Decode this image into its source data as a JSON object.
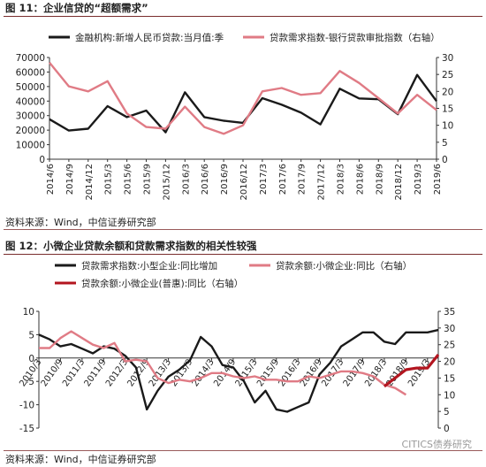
{
  "figure1": {
    "title": "图 11：企业信贷的“超额需求”",
    "source": "资料来源：Wind，中信证券研究部",
    "legend": [
      {
        "label": "金融机构:新增人民币贷款:当月值:季",
        "color": "#1a1a1a"
      },
      {
        "label": "贷款需求指数-银行贷款审批指数（右轴）",
        "color": "#e07b85"
      }
    ],
    "left_ticks": [
      "0",
      "10000",
      "20000",
      "30000",
      "40000",
      "50000",
      "60000",
      "70000"
    ],
    "right_ticks": [
      "0",
      "5",
      "10",
      "15",
      "20",
      "25",
      "30"
    ]
  },
  "figure2": {
    "title": "图 12：小微企业贷款余额和贷款需求指数的相关性较强",
    "source": "资料来源：Wind，中信证券研究部",
    "legend": [
      {
        "label": "贷款需求指数:小型企业:同比增加",
        "color": "#1a1a1a"
      },
      {
        "label": "贷款余额:小微企业:同比（右轴）",
        "color": "#e07b85"
      },
      {
        "label": "贷款余额:小微企业(普惠):同比（右轴）",
        "color": "#b3151f"
      }
    ],
    "left_ticks": [
      "-15",
      "-10",
      "-5",
      "0",
      "5",
      "10"
    ],
    "right_ticks": [
      "0",
      "5",
      "10",
      "15",
      "20",
      "25",
      "30",
      "35"
    ]
  },
  "watermark": "CITICS债券研究",
  "chart_data": [
    {
      "type": "line",
      "title": "图 11：企业信贷的“超额需求”",
      "x": [
        "2014/6",
        "2014/9",
        "2014/12",
        "2015/3",
        "2015/6",
        "2015/9",
        "2015/12",
        "2016/3",
        "2016/6",
        "2016/9",
        "2016/12",
        "2017/3",
        "2017/6",
        "2017/9",
        "2017/12",
        "2018/3",
        "2018/6",
        "2018/9",
        "2018/12",
        "2019/3",
        "2019/6"
      ],
      "y_left_range": [
        0,
        70000
      ],
      "y_right_range": [
        0,
        30
      ],
      "series": [
        {
          "name": "金融机构:新增人民币贷款:当月值:季",
          "axis": "left",
          "color": "#1a1a1a",
          "values": [
            27500,
            19700,
            21000,
            36500,
            29000,
            33500,
            18500,
            46000,
            29000,
            26500,
            25000,
            42000,
            37500,
            32000,
            24000,
            48500,
            41800,
            41300,
            31000,
            58000,
            40000
          ]
        },
        {
          "name": "贷款需求指数-银行贷款审批指数（右轴）",
          "axis": "right",
          "color": "#e07b85",
          "values": [
            28.5,
            21.5,
            20.0,
            23.0,
            13.5,
            9.5,
            9.0,
            15.5,
            9.5,
            7.5,
            10.0,
            20.0,
            21.0,
            19.0,
            19.5,
            26.0,
            22.5,
            18.0,
            13.5,
            19.0,
            14.5
          ]
        }
      ]
    },
    {
      "type": "line",
      "title": "图 12：小微企业贷款余额和贷款需求指数的相关性较强",
      "x": [
        "2010/3",
        "2010/9",
        "2011/3",
        "2011/9",
        "2012/3",
        "2012/9",
        "2013/3",
        "2013/9",
        "2014/3",
        "2014/9",
        "2015/3",
        "2015/9",
        "2016/3",
        "2016/9",
        "2017/3",
        "2017/9",
        "2018/3",
        "2018/9",
        "2019/3"
      ],
      "y_left_range": [
        -15,
        10
      ],
      "y_right_range": [
        0,
        35
      ],
      "series": [
        {
          "name": "贷款需求指数:小型企业:同比增加",
          "axis": "left",
          "color": "#1a1a1a",
          "points": [
            [
              "2010/3",
              5.0
            ],
            [
              "2010/6",
              4.0
            ],
            [
              "2010/9",
              2.5
            ],
            [
              "2010/12",
              3.0
            ],
            [
              "2011/3",
              2.0
            ],
            [
              "2011/6",
              1.0
            ],
            [
              "2011/9",
              2.5
            ],
            [
              "2011/12",
              2.0
            ],
            [
              "2012/3",
              0.5
            ],
            [
              "2012/6",
              -2.0
            ],
            [
              "2012/9",
              -11.0
            ],
            [
              "2012/12",
              -7.0
            ],
            [
              "2013/3",
              -4.0
            ],
            [
              "2013/6",
              -2.5
            ],
            [
              "2013/9",
              -0.5
            ],
            [
              "2013/12",
              4.5
            ],
            [
              "2014/3",
              2.5
            ],
            [
              "2014/6",
              -1.5
            ],
            [
              "2014/9",
              -2.0
            ],
            [
              "2014/12",
              -5.0
            ],
            [
              "2015/3",
              -9.5
            ],
            [
              "2015/6",
              -7.0
            ],
            [
              "2015/9",
              -11.0
            ],
            [
              "2015/12",
              -11.5
            ],
            [
              "2016/3",
              -10.5
            ],
            [
              "2016/6",
              -9.5
            ],
            [
              "2016/9",
              -3.5
            ],
            [
              "2016/12",
              -1.0
            ],
            [
              "2017/3",
              2.5
            ],
            [
              "2017/6",
              4.0
            ],
            [
              "2017/9",
              5.5
            ],
            [
              "2017/12",
              5.5
            ],
            [
              "2018/3",
              3.5
            ],
            [
              "2018/6",
              3.0
            ],
            [
              "2018/9",
              5.5
            ],
            [
              "2018/12",
              5.5
            ],
            [
              "2019/3",
              5.5
            ],
            [
              "2019/6",
              6.0
            ]
          ]
        },
        {
          "name": "贷款余额:小微企业:同比（右轴）",
          "axis": "right",
          "color": "#e07b85",
          "points": [
            [
              "2010/3",
              24.0
            ],
            [
              "2010/6",
              24.0
            ],
            [
              "2010/9",
              27.0
            ],
            [
              "2010/12",
              29.0
            ],
            [
              "2011/3",
              27.0
            ],
            [
              "2011/6",
              25.0
            ],
            [
              "2011/9",
              24.0
            ],
            [
              "2011/12",
              25.5
            ],
            [
              "2012/3",
              20.0
            ],
            [
              "2012/6",
              20.5
            ],
            [
              "2012/9",
              20.0
            ],
            [
              "2012/12",
              15.0
            ],
            [
              "2013/3",
              13.5
            ],
            [
              "2013/6",
              14.5
            ],
            [
              "2013/9",
              14.0
            ],
            [
              "2013/12",
              15.0
            ],
            [
              "2014/3",
              16.5
            ],
            [
              "2014/6",
              16.5
            ],
            [
              "2014/9",
              15.5
            ],
            [
              "2014/12",
              15.0
            ],
            [
              "2015/3",
              15.5
            ],
            [
              "2015/6",
              14.5
            ],
            [
              "2015/9",
              14.5
            ],
            [
              "2015/12",
              14.0
            ],
            [
              "2016/3",
              14.0
            ],
            [
              "2016/6",
              15.5
            ],
            [
              "2016/9",
              15.0
            ],
            [
              "2016/12",
              16.0
            ],
            [
              "2017/3",
              17.0
            ],
            [
              "2017/6",
              17.0
            ],
            [
              "2017/9",
              16.5
            ],
            [
              "2017/12",
              15.5
            ],
            [
              "2018/3",
              13.0
            ],
            [
              "2018/6",
              12.0
            ],
            [
              "2018/9",
              10.0
            ]
          ]
        },
        {
          "name": "贷款余额:小微企业(普惠):同比（右轴）",
          "axis": "right",
          "color": "#b3151f",
          "points": [
            [
              "2018/3",
              12.5
            ],
            [
              "2018/6",
              15.0
            ],
            [
              "2018/9",
              17.5
            ],
            [
              "2018/12",
              18.0
            ],
            [
              "2019/3",
              18.0
            ],
            [
              "2019/6",
              22.0
            ]
          ]
        }
      ]
    }
  ]
}
